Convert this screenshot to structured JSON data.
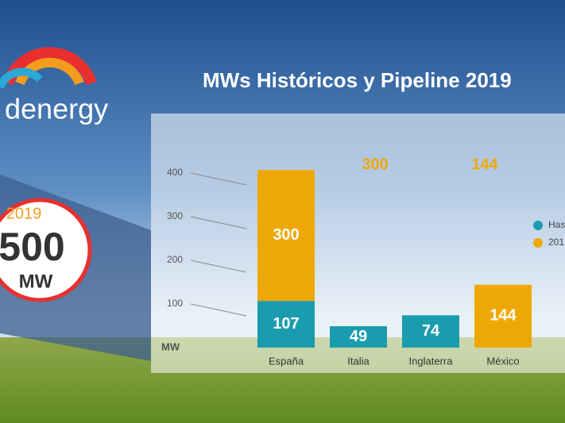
{
  "logo": "denergy",
  "badge": {
    "year": "2019",
    "capacity": "500",
    "unit": "MW"
  },
  "chart_data": {
    "type": "bar",
    "stacked": true,
    "title": "MWs Históricos y Pipeline 2019",
    "y_label": "MW",
    "categories": [
      "España",
      "Italia",
      "Inglaterra",
      "México"
    ],
    "series": [
      {
        "name": "Has",
        "color": "#1a9cae",
        "values": [
          107,
          49,
          74,
          null
        ]
      },
      {
        "name": "201",
        "color": "#eea806",
        "values": [
          300,
          null,
          null,
          144
        ]
      }
    ],
    "ylim": [
      0,
      400
    ],
    "yticks": [
      100,
      200,
      300,
      400
    ],
    "grid": true
  }
}
